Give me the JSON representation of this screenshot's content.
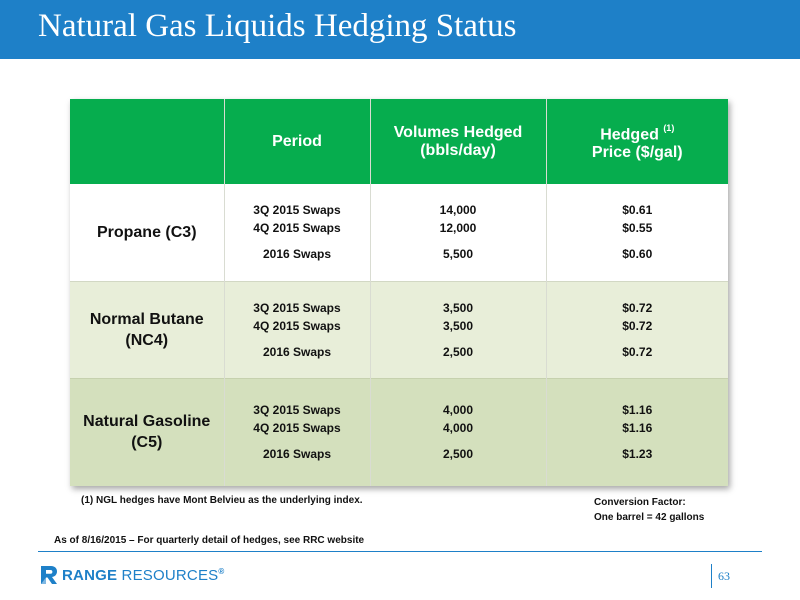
{
  "header": {
    "title": "Natural Gas Liquids Hedging Status"
  },
  "table": {
    "columns": {
      "product": "",
      "period": "Period",
      "volumes_line1": "Volumes Hedged",
      "volumes_line2": "(bbls/day)",
      "price_line1": "Hedged",
      "price_sup": "(1)",
      "price_line2": "Price ($/gal)"
    },
    "rows": [
      {
        "product_line1": "Propane (C3)",
        "product_line2": "",
        "entries": [
          {
            "period": "3Q 2015 Swaps",
            "volume": "14,000",
            "price": "$0.61"
          },
          {
            "period": "4Q 2015 Swaps",
            "volume": "12,000",
            "price": "$0.55"
          },
          {
            "period": "2016 Swaps",
            "volume": "5,500",
            "price": "$0.60"
          }
        ]
      },
      {
        "product_line1": "Normal Butane",
        "product_line2": "(NC4)",
        "entries": [
          {
            "period": "3Q 2015 Swaps",
            "volume": "3,500",
            "price": "$0.72"
          },
          {
            "period": "4Q 2015 Swaps",
            "volume": "3,500",
            "price": "$0.72"
          },
          {
            "period": "2016 Swaps",
            "volume": "2,500",
            "price": "$0.72"
          }
        ]
      },
      {
        "product_line1": "Natural Gasoline",
        "product_line2": "(C5)",
        "entries": [
          {
            "period": "3Q 2015 Swaps",
            "volume": "4,000",
            "price": "$1.16"
          },
          {
            "period": "4Q 2015 Swaps",
            "volume": "4,000",
            "price": "$1.16"
          },
          {
            "period": "2016 Swaps",
            "volume": "2,500",
            "price": "$1.23"
          }
        ]
      }
    ]
  },
  "footnote": "(1) NGL hedges have Mont Belvieu as the underlying index.",
  "conversion": {
    "line1": "Conversion Factor:",
    "line2": "One barrel = 42 gallons"
  },
  "as_of": "As of 8/16/2015 – For quarterly detail of hedges, see RRC website",
  "footer": {
    "logo_bold": "RANGE",
    "logo_light": "RESOURCES",
    "logo_reg": "®",
    "page_number": "63"
  },
  "colors": {
    "title_bar": "#1e80c8",
    "header_green": "#06ad4e",
    "row_white": "#ffffff",
    "row_light_green": "#e8eed9",
    "row_mid_green": "#d4e0bd"
  },
  "icons": {
    "logo_mark": "range-r-logo-icon"
  }
}
